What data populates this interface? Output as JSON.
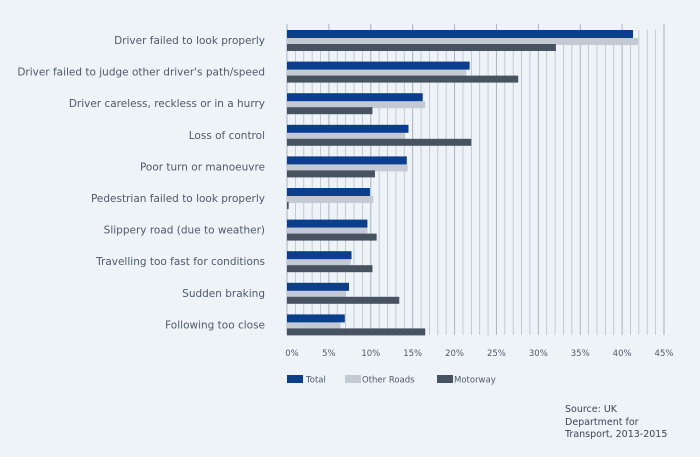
{
  "chart_data": {
    "type": "bar",
    "orientation": "horizontal",
    "categories": [
      "Driver failed to look properly",
      "Driver failed to judge other driver's path/speed",
      "Driver careless, reckless or in a hurry",
      "Loss of control",
      "Poor turn or manoeuvre",
      "Pedestrian failed to look properly",
      "Slippery road (due to weather)",
      "Travelling too fast for conditions",
      "Sudden braking",
      "Following too close"
    ],
    "series": [
      {
        "name": "Total",
        "color": "#0b3f8e",
        "values": [
          41.3,
          21.8,
          16.2,
          14.5,
          14.3,
          9.9,
          9.6,
          7.7,
          7.4,
          6.9
        ]
      },
      {
        "name": "Other Roads",
        "color": "#c3cad3",
        "values": [
          41.9,
          21.4,
          16.5,
          14.1,
          14.4,
          10.3,
          9.6,
          7.6,
          7.0,
          6.4
        ]
      },
      {
        "name": "Motorway",
        "color": "#485362",
        "values": [
          32.1,
          27.6,
          10.2,
          22.0,
          10.5,
          0.2,
          10.7,
          10.2,
          13.4,
          16.5
        ]
      }
    ],
    "xlim": [
      0,
      45
    ],
    "xticks": [
      "0%",
      "5%",
      "10%",
      "15%",
      "20%",
      "25%",
      "30%",
      "35%",
      "40%",
      "45%"
    ],
    "grid": true,
    "legend": "bottom-left",
    "xlabel": "",
    "ylabel": "",
    "title": ""
  },
  "source": {
    "line1": "Source: UK",
    "line2": "Department for",
    "line3": "Transport, 2013-2015"
  }
}
